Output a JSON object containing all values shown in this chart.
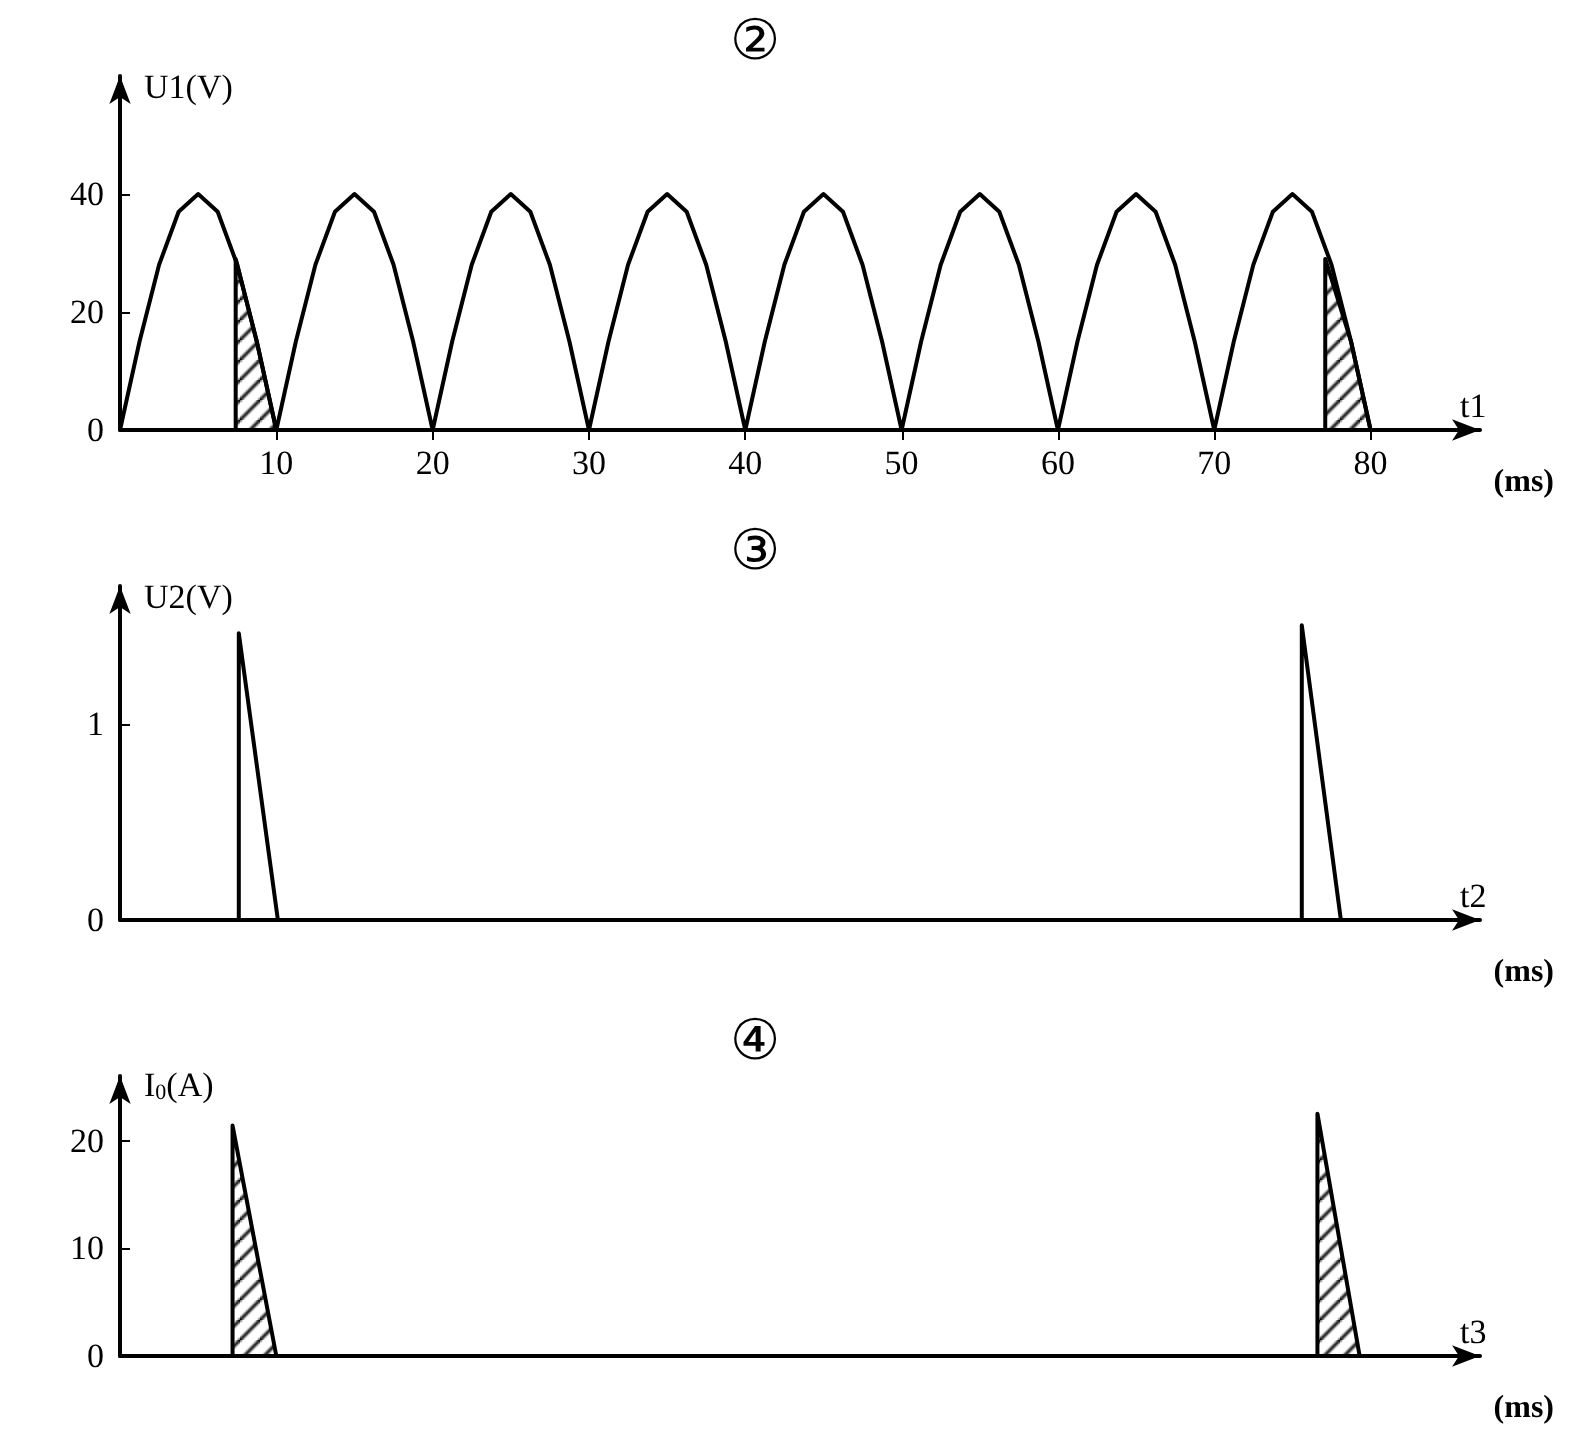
{
  "chart_data": [
    {
      "type": "line",
      "title": "②",
      "xlabel": "t1",
      "ylabel": "U1(V)",
      "annotations": [
        "(ms)"
      ],
      "xlim": [
        0,
        87
      ],
      "ylim": [
        0,
        60
      ],
      "xticks": [
        10,
        20,
        30,
        40,
        50,
        60,
        70,
        80
      ],
      "yticks": [
        0,
        20,
        40
      ],
      "grid": false,
      "marker": "none",
      "line_style": "solid",
      "series": [
        {
          "color": "#000000",
          "x": [
            0,
            1.25,
            2.5,
            3.75,
            5,
            6.25,
            7.5,
            8.75,
            10,
            11.25,
            12.5,
            13.75,
            15,
            16.25,
            17.5,
            18.75,
            20,
            21.25,
            22.5,
            23.75,
            25,
            26.25,
            27.5,
            28.75,
            30,
            31.25,
            32.5,
            33.75,
            35,
            36.25,
            37.5,
            38.75,
            40,
            41.25,
            42.5,
            43.75,
            45,
            46.25,
            47.5,
            48.75,
            50,
            51.25,
            52.5,
            53.75,
            55,
            56.25,
            57.5,
            58.75,
            60,
            61.25,
            62.5,
            63.75,
            65,
            66.25,
            67.5,
            68.75,
            70,
            71.25,
            72.5,
            73.75,
            75,
            76.25,
            77.5,
            78.75,
            80
          ],
          "values": [
            0,
            15,
            28,
            37,
            40,
            37,
            28,
            15,
            0,
            15,
            28,
            37,
            40,
            37,
            28,
            15,
            0,
            15,
            28,
            37,
            40,
            37,
            28,
            15,
            0,
            15,
            28,
            37,
            40,
            37,
            28,
            15,
            0,
            15,
            28,
            37,
            40,
            37,
            28,
            15,
            0,
            15,
            28,
            37,
            40,
            37,
            28,
            15,
            0,
            15,
            28,
            37,
            40,
            37,
            28,
            15,
            0,
            15,
            28,
            37,
            40,
            37,
            28,
            15,
            0
          ]
        },
        {
          "type": "area",
          "color": "#000000",
          "x": [
            7.4,
            7.4,
            8.75,
            10
          ],
          "values": [
            0,
            29,
            15,
            0
          ]
        },
        {
          "type": "area",
          "color": "#000000",
          "x": [
            77.1,
            77.1,
            78.75,
            80
          ],
          "values": [
            0,
            29,
            15,
            0
          ]
        }
      ]
    },
    {
      "type": "line",
      "title": "③",
      "xlabel": "t2",
      "ylabel": "U2(V)",
      "annotations": [
        "(ms)"
      ],
      "xlim": [
        0,
        87
      ],
      "ylim": [
        0,
        1.7
      ],
      "yticks": [
        0,
        1
      ],
      "tick_labels": "y",
      "grid": false,
      "marker": "none",
      "line_style": "solid",
      "series": [
        {
          "color": "#000000",
          "x": [
            7.6,
            7.6,
            10.1
          ],
          "values": [
            0,
            1.46,
            0
          ]
        },
        {
          "color": "#000000",
          "x": [
            75.6,
            75.6,
            78.1
          ],
          "values": [
            0,
            1.5,
            0
          ]
        }
      ]
    },
    {
      "type": "area",
      "title": "④",
      "xlabel": "t3",
      "ylabel": "I$_{0}$(A)",
      "annotations": [
        "(ms)"
      ],
      "xlim": [
        0,
        87
      ],
      "ylim": [
        0,
        26
      ],
      "yticks": [
        0,
        10,
        20
      ],
      "tick_labels": "y",
      "grid": false,
      "marker": "none",
      "line_style": "solid",
      "series": [
        {
          "color": "#000000",
          "x": [
            7.2,
            7.2,
            10
          ],
          "values": [
            0,
            21.4,
            0
          ]
        },
        {
          "color": "#000000",
          "x": [
            76.6,
            76.6,
            79.3
          ],
          "values": [
            0,
            22.5,
            0
          ]
        }
      ]
    }
  ]
}
